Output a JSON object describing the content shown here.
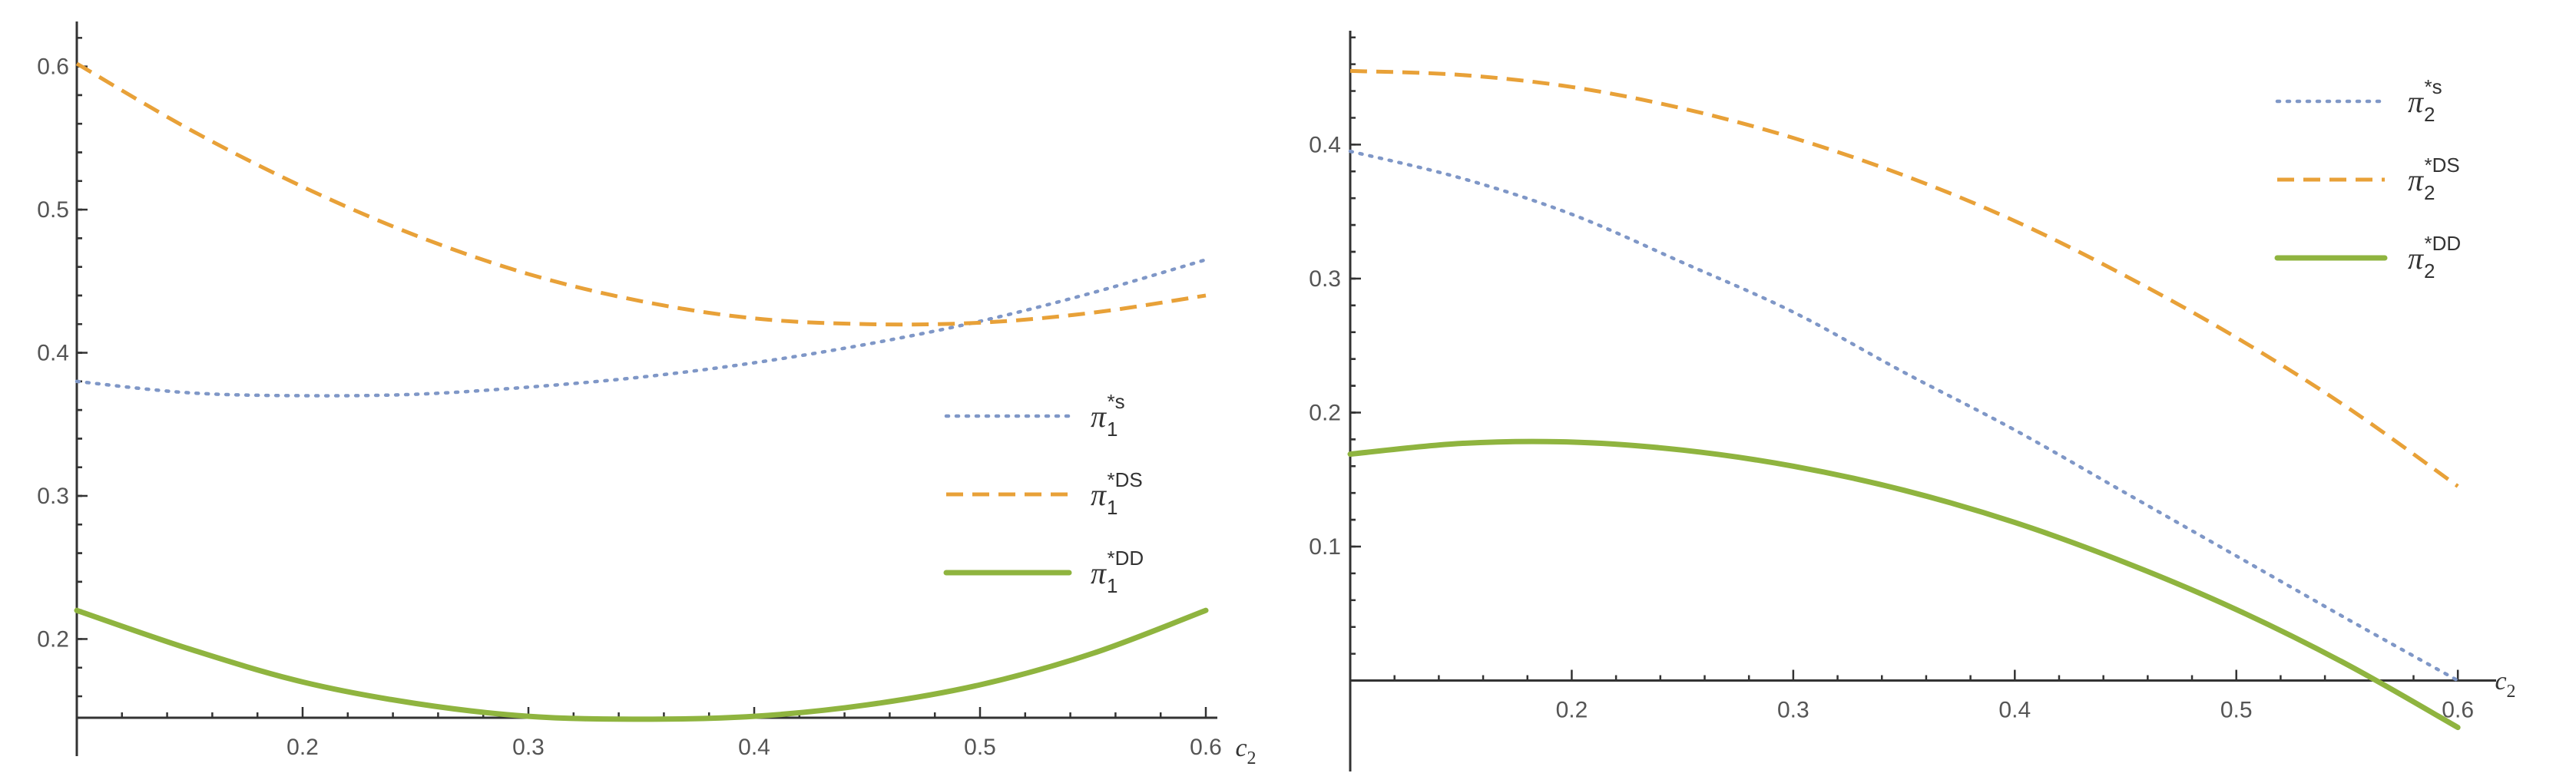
{
  "chart_data": [
    {
      "type": "line",
      "xlabel": "c",
      "xlabel_sub": "2",
      "xlim": [
        0.1,
        0.6
      ],
      "ylim": [
        0.145,
        0.625
      ],
      "x_axis_at_y": 0.145,
      "x_ticks": [
        0.2,
        0.3,
        0.4,
        0.5,
        0.6
      ],
      "x_tick_labels": [
        "0.2",
        "0.3",
        "0.4",
        "0.5",
        "0.6"
      ],
      "y_ticks": [
        0.2,
        0.3,
        0.4,
        0.5,
        0.6
      ],
      "y_tick_labels": [
        "0.2",
        "0.3",
        "0.4",
        "0.5",
        "0.6"
      ],
      "legend_position": "center-right",
      "series": [
        {
          "name": "π1*s",
          "legend": {
            "main": "π",
            "sub": "1",
            "sup": "*s"
          },
          "style": "dotted",
          "color": "#7f97c7",
          "x": [
            0.1,
            0.15,
            0.2,
            0.25,
            0.3,
            0.35,
            0.4,
            0.45,
            0.5,
            0.55,
            0.6
          ],
          "y": [
            0.38,
            0.372,
            0.37,
            0.371,
            0.376,
            0.383,
            0.393,
            0.406,
            0.422,
            0.442,
            0.465
          ]
        },
        {
          "name": "π1*DS",
          "legend": {
            "main": "π",
            "sub": "1",
            "sup": "*DS"
          },
          "style": "dashed",
          "color": "#e8a138",
          "x": [
            0.1,
            0.15,
            0.2,
            0.25,
            0.3,
            0.35,
            0.4,
            0.45,
            0.5,
            0.55,
            0.6
          ],
          "y": [
            0.602,
            0.556,
            0.516,
            0.482,
            0.455,
            0.436,
            0.424,
            0.42,
            0.421,
            0.428,
            0.44
          ]
        },
        {
          "name": "π1*DD",
          "legend": {
            "main": "π",
            "sub": "1",
            "sup": "*DD"
          },
          "style": "solid",
          "color": "#8fb43f",
          "x": [
            0.1,
            0.15,
            0.2,
            0.25,
            0.3,
            0.35,
            0.4,
            0.45,
            0.5,
            0.55,
            0.6
          ],
          "y": [
            0.22,
            0.193,
            0.17,
            0.155,
            0.146,
            0.144,
            0.146,
            0.154,
            0.168,
            0.19,
            0.22
          ]
        }
      ]
    },
    {
      "type": "line",
      "xlabel": "c",
      "xlabel_sub": "2",
      "xlim": [
        0.1,
        0.61
      ],
      "ylim": [
        -0.065,
        0.485
      ],
      "x_axis_at_y": 0.0,
      "x_ticks": [
        0.2,
        0.3,
        0.4,
        0.5,
        0.6
      ],
      "x_tick_labels": [
        "0.2",
        "0.3",
        "0.4",
        "0.5",
        "0.6"
      ],
      "y_ticks": [
        0.1,
        0.2,
        0.3,
        0.4
      ],
      "y_tick_labels": [
        "0.1",
        "0.2",
        "0.3",
        "0.4"
      ],
      "legend_position": "top-right",
      "series": [
        {
          "name": "π2*s",
          "legend": {
            "main": "π",
            "sub": "2",
            "sup": "*s"
          },
          "style": "dotted",
          "color": "#7f97c7",
          "x": [
            0.1,
            0.15,
            0.2,
            0.25,
            0.3,
            0.35,
            0.4,
            0.45,
            0.5,
            0.55,
            0.6
          ],
          "y": [
            0.395,
            0.375,
            0.348,
            0.312,
            0.275,
            0.23,
            0.187,
            0.14,
            0.093,
            0.046,
            0.0
          ]
        },
        {
          "name": "π2*DS",
          "legend": {
            "main": "π",
            "sub": "2",
            "sup": "*DS"
          },
          "style": "dashed",
          "color": "#e8a138",
          "x": [
            0.1,
            0.15,
            0.2,
            0.25,
            0.3,
            0.35,
            0.4,
            0.45,
            0.5,
            0.55,
            0.6
          ],
          "y": [
            0.455,
            0.452,
            0.443,
            0.427,
            0.405,
            0.377,
            0.343,
            0.302,
            0.256,
            0.204,
            0.145
          ]
        },
        {
          "name": "π2*DD",
          "legend": {
            "main": "π",
            "sub": "2",
            "sup": "*DD"
          },
          "style": "solid",
          "color": "#8fb43f",
          "x": [
            0.1,
            0.15,
            0.2,
            0.25,
            0.3,
            0.35,
            0.4,
            0.45,
            0.5,
            0.55,
            0.6
          ],
          "y": [
            0.169,
            0.177,
            0.178,
            0.172,
            0.16,
            0.142,
            0.118,
            0.088,
            0.053,
            0.012,
            -0.035
          ]
        }
      ]
    }
  ]
}
